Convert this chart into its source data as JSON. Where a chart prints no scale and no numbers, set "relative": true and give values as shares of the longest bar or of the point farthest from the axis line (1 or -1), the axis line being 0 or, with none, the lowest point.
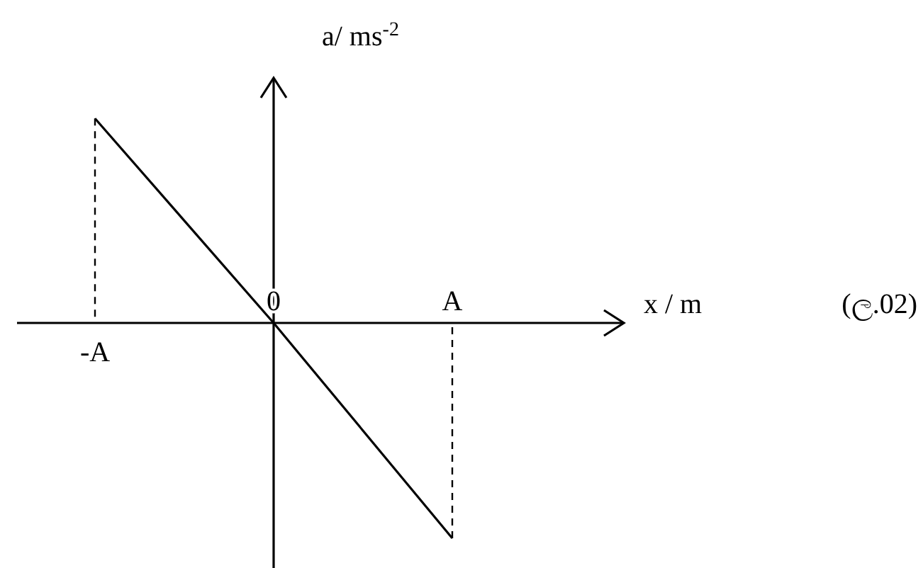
{
  "chart_data": {
    "type": "line",
    "relative": true,
    "xlabel": "x / m",
    "ylabel": "a/ ms$^{-2}$",
    "categories": [
      "-A",
      "0",
      "A"
    ],
    "series": [
      {
        "color": "#000000",
        "values": [
          0.95,
          0,
          -1
        ]
      }
    ],
    "line_style": "solid",
    "marker": "none",
    "annotations": [
      "(ල.02)"
    ]
  }
}
